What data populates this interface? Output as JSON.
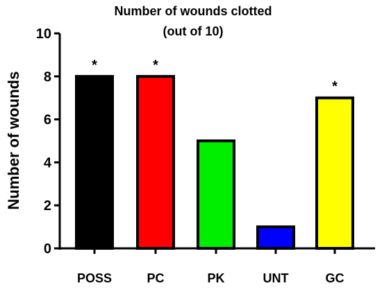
{
  "chart_data": {
    "type": "bar",
    "title_lines": [
      "Number of wounds clotted",
      "(out of 10)"
    ],
    "xlabel": "",
    "ylabel": "Number of wounds",
    "ylim": [
      0,
      10
    ],
    "yticks": [
      0,
      2,
      4,
      6,
      8,
      10
    ],
    "grid": false,
    "legend": "none",
    "categories": [
      "POSS",
      "PC",
      "PK",
      "UNT",
      "GC"
    ],
    "values": [
      8,
      8,
      5,
      1,
      7
    ],
    "colors": [
      "#000000",
      "#ff0000",
      "#00ee00",
      "#0000ff",
      "#ffff00"
    ],
    "annotations": [
      "*",
      "*",
      "",
      "",
      "*"
    ]
  }
}
